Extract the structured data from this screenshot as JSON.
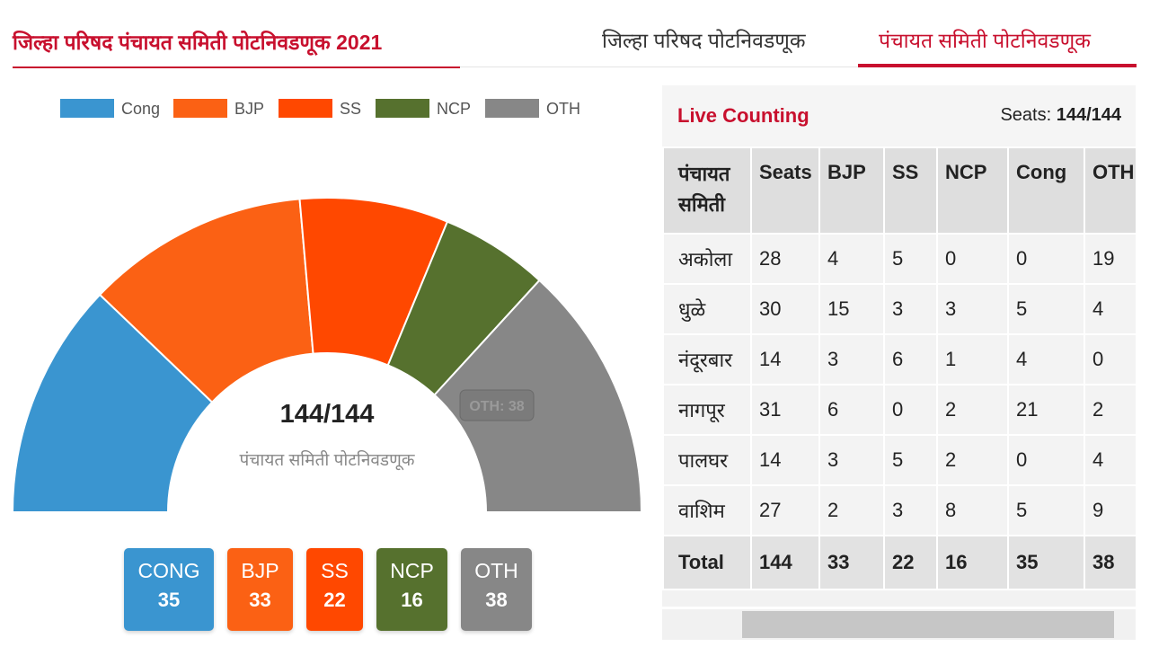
{
  "header": {
    "title": "जिल्हा परिषद पंचायत समिती पोटनिवडणूक 2021",
    "tabs": [
      {
        "label": "जिल्हा परिषद पोटनिवडणूक",
        "active": false
      },
      {
        "label": "पंचायत समिती पोटनिवडणूक",
        "active": true
      }
    ]
  },
  "colors": {
    "accent": "#c8102e",
    "Cong": "#3a95d0",
    "BJP": "#fb6114",
    "SS": "#ff4800",
    "NCP": "#56712e",
    "OTH": "#878787"
  },
  "chart_data": {
    "type": "pie",
    "subtype": "semicircle-donut",
    "center_value": "144/144",
    "center_caption": "पंचायत समिती पोटनिवडणूक",
    "legend": [
      "Cong",
      "BJP",
      "SS",
      "NCP",
      "OTH"
    ],
    "legend_position": "top",
    "series": [
      {
        "name": "Cong",
        "value": 35
      },
      {
        "name": "BJP",
        "value": 33
      },
      {
        "name": "SS",
        "value": 22
      },
      {
        "name": "NCP",
        "value": 16
      },
      {
        "name": "OTH",
        "value": 38
      }
    ],
    "tooltip": "OTH: 38"
  },
  "summary": [
    {
      "label": "CONG",
      "value": "35",
      "key": "Cong"
    },
    {
      "label": "BJP",
      "value": "33",
      "key": "BJP"
    },
    {
      "label": "SS",
      "value": "22",
      "key": "SS"
    },
    {
      "label": "NCP",
      "value": "16",
      "key": "NCP"
    },
    {
      "label": "OTH",
      "value": "38",
      "key": "OTH"
    }
  ],
  "table": {
    "live_label": "Live Counting",
    "seats_label": "Seats: ",
    "seats_value": "144/144",
    "columns": [
      "पंचायत समिती",
      "Seats",
      "BJP",
      "SS",
      "NCP",
      "Cong",
      "OTH"
    ],
    "rows": [
      [
        "अकोला",
        "28",
        "4",
        "5",
        "0",
        "0",
        "19"
      ],
      [
        "धुळे",
        "30",
        "15",
        "3",
        "3",
        "5",
        "4"
      ],
      [
        "नंदूरबार",
        "14",
        "3",
        "6",
        "1",
        "4",
        "0"
      ],
      [
        "नागपूर",
        "31",
        "6",
        "0",
        "2",
        "21",
        "2"
      ],
      [
        "पालघर",
        "14",
        "3",
        "5",
        "2",
        "0",
        "4"
      ],
      [
        "वाशिम",
        "27",
        "2",
        "3",
        "8",
        "5",
        "9"
      ]
    ],
    "total": [
      "Total",
      "144",
      "33",
      "22",
      "16",
      "35",
      "38"
    ]
  }
}
